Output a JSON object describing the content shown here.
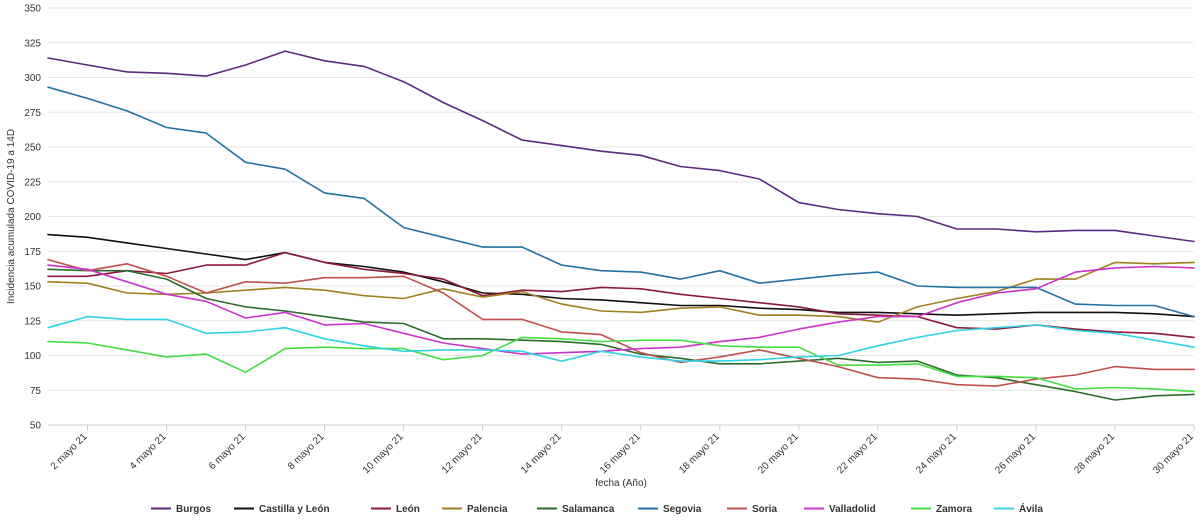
{
  "chart_data": {
    "type": "line",
    "xlabel": "fecha (Año)",
    "ylabel": "Incidencia acumulada COVID-19 a 14D",
    "ylim": [
      50,
      350
    ],
    "yticks": [
      50,
      75,
      100,
      125,
      150,
      175,
      200,
      225,
      250,
      275,
      300,
      325,
      350
    ],
    "grid": true,
    "legend_position": "bottom",
    "x": [
      "1 mayo 21",
      "2 mayo 21",
      "3 mayo 21",
      "4 mayo 21",
      "5 mayo 21",
      "6 mayo 21",
      "7 mayo 21",
      "8 mayo 21",
      "9 mayo 21",
      "10 mayo 21",
      "11 mayo 21",
      "12 mayo 21",
      "13 mayo 21",
      "14 mayo 21",
      "15 mayo 21",
      "16 mayo 21",
      "17 mayo 21",
      "18 mayo 21",
      "19 mayo 21",
      "20 mayo 21",
      "21 mayo 21",
      "22 mayo 21",
      "23 mayo 21",
      "24 mayo 21",
      "25 mayo 21",
      "26 mayo 21",
      "27 mayo 21",
      "28 mayo 21",
      "29 mayo 21",
      "30 mayo 21"
    ],
    "xtick_labels": [
      "2 mayo 21",
      "4 mayo 21",
      "6 mayo 21",
      "8 mayo 21",
      "10 mayo 21",
      "12 mayo 21",
      "14 mayo 21",
      "16 mayo 21",
      "18 mayo 21",
      "20 mayo 21",
      "22 mayo 21",
      "24 mayo 21",
      "26 mayo 21",
      "28 mayo 21",
      "30 mayo 21"
    ],
    "series": [
      {
        "name": "Burgos",
        "color": "#5b2a7e",
        "values": [
          314,
          309,
          304,
          303,
          301,
          309,
          319,
          312,
          308,
          297,
          282,
          269,
          255,
          251,
          247,
          244,
          236,
          233,
          227,
          210,
          205,
          202,
          200,
          191,
          191,
          189,
          190,
          190,
          186,
          182
        ]
      },
      {
        "name": "Castilla y León",
        "color": "#111111",
        "values": [
          187,
          185,
          181,
          177,
          173,
          169,
          174,
          167,
          164,
          160,
          153,
          145,
          144,
          141,
          140,
          138,
          136,
          136,
          134,
          133,
          131,
          131,
          130,
          129,
          130,
          131,
          131,
          131,
          130,
          128
        ]
      },
      {
        "name": "León",
        "color": "#8b1a3a",
        "values": [
          157,
          157,
          161,
          159,
          165,
          165,
          174,
          167,
          162,
          159,
          155,
          143,
          147,
          146,
          149,
          148,
          144,
          141,
          138,
          135,
          130,
          129,
          128,
          120,
          119,
          122,
          119,
          117,
          116,
          113
        ]
      },
      {
        "name": "Palencia",
        "color": "#a08020",
        "values": [
          153,
          152,
          145,
          144,
          145,
          147,
          149,
          147,
          143,
          141,
          148,
          142,
          146,
          137,
          132,
          131,
          134,
          135,
          129,
          129,
          128,
          124,
          135,
          141,
          146,
          155,
          155,
          167,
          166,
          167
        ]
      },
      {
        "name": "Salamanca",
        "color": "#2e6b2e",
        "values": [
          162,
          161,
          161,
          155,
          141,
          135,
          132,
          128,
          124,
          123,
          112,
          112,
          111,
          110,
          108,
          101,
          98,
          94,
          94,
          96,
          98,
          95,
          96,
          86,
          84,
          79,
          74,
          68,
          71,
          72
        ]
      },
      {
        "name": "Segovia",
        "color": "#2471a3",
        "values": [
          293,
          285,
          276,
          264,
          260,
          239,
          234,
          217,
          213,
          192,
          185,
          178,
          178,
          165,
          161,
          160,
          155,
          161,
          152,
          155,
          158,
          160,
          150,
          149,
          149,
          149,
          137,
          136,
          136,
          128
        ]
      },
      {
        "name": "Soria",
        "color": "#c0504d",
        "values": [
          169,
          161,
          166,
          157,
          145,
          153,
          152,
          156,
          156,
          157,
          145,
          126,
          126,
          117,
          115,
          102,
          95,
          99,
          104,
          98,
          92,
          84,
          83,
          79,
          78,
          83,
          86,
          92,
          90,
          90
        ]
      },
      {
        "name": "Valladolid",
        "color": "#cc33cc",
        "values": [
          165,
          162,
          153,
          144,
          139,
          127,
          131,
          122,
          123,
          116,
          109,
          105,
          101,
          102,
          103,
          105,
          106,
          110,
          113,
          119,
          124,
          128,
          128,
          138,
          145,
          148,
          160,
          163,
          164,
          163
        ]
      },
      {
        "name": "Zamora",
        "color": "#44dd44",
        "values": [
          110,
          109,
          104,
          99,
          101,
          88,
          105,
          106,
          105,
          105,
          97,
          100,
          113,
          112,
          110,
          111,
          111,
          107,
          106,
          106,
          93,
          93,
          94,
          85,
          85,
          84,
          76,
          77,
          76,
          74
        ]
      },
      {
        "name": "Ávila",
        "color": "#2fd4e6",
        "values": [
          120,
          128,
          126,
          126,
          116,
          117,
          120,
          112,
          107,
          103,
          104,
          104,
          103,
          96,
          103,
          99,
          96,
          96,
          97,
          99,
          100,
          107,
          113,
          118,
          120,
          122,
          118,
          116,
          111,
          106
        ]
      }
    ]
  }
}
